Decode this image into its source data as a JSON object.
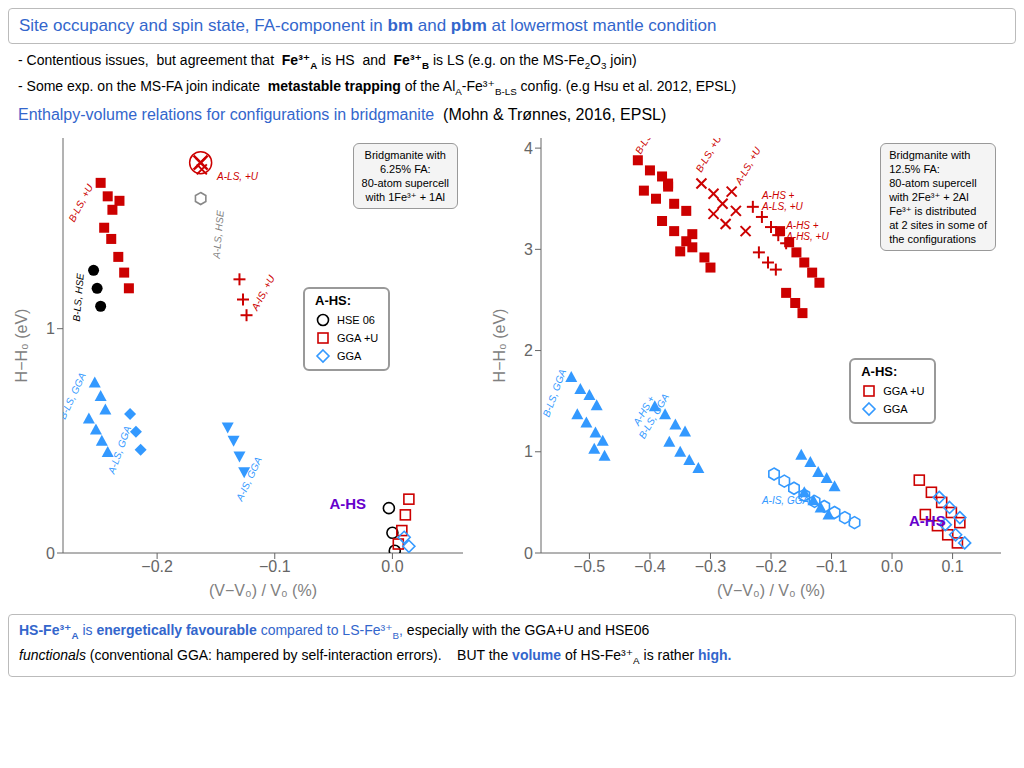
{
  "title": [
    {
      "text": "Site occupancy and spin state, FA-component in ",
      "color": "#3366cc"
    },
    {
      "text": "bm",
      "bold": true,
      "color": "#3366cc"
    },
    {
      "text": " and ",
      "color": "#3366cc"
    },
    {
      "text": "pbm",
      "bold": true,
      "color": "#3366cc"
    },
    {
      "text": " at lowermost mantle condition",
      "color": "#3366cc"
    }
  ],
  "subtitle": [
    [
      {
        "text": "- Contentious issues,  but agreement that  "
      },
      {
        "text": "Fe³⁺",
        "bold": true
      },
      {
        "text": "A",
        "bold": true,
        "sub": true
      },
      {
        "text": " is HS  and  "
      },
      {
        "text": "Fe³⁺",
        "bold": true
      },
      {
        "text": "B",
        "bold": true,
        "sub": true
      },
      {
        "text": " is LS (e.g. on the MS-Fe"
      },
      {
        "text": "2",
        "sub": true
      },
      {
        "text": "O"
      },
      {
        "text": "3",
        "sub": true
      },
      {
        "text": " join)"
      }
    ],
    [
      {
        "text": "- Some exp. on the MS-FA join indicate  "
      },
      {
        "text": "metastable trapping",
        "bold": true
      },
      {
        "text": " of the Al"
      },
      {
        "text": "A",
        "sub": true
      },
      {
        "text": "-Fe³⁺"
      },
      {
        "text": "B-LS",
        "sub": true
      },
      {
        "text": " config. (e.g Hsu et al. 2012, EPSL)"
      }
    ]
  ],
  "section": [
    {
      "text": "Enthalpy-volume relations for configurations in bridgmanite",
      "color": "#3366cc"
    },
    {
      "text": "  (Mohn & Trønnes, 2016, EPSL)"
    }
  ],
  "footer": [
    [
      {
        "text": "HS-Fe³⁺",
        "bold": true,
        "color": "#3366cc"
      },
      {
        "text": "A",
        "bold": true,
        "sub": true,
        "color": "#3366cc"
      },
      {
        "text": " is ",
        "color": "#3366cc"
      },
      {
        "text": "energetically favourable",
        "bold": true,
        "color": "#3366cc"
      },
      {
        "text": " compared to LS-Fe³⁺",
        "color": "#3366cc"
      },
      {
        "text": "B",
        "sub": true,
        "color": "#3366cc"
      },
      {
        "text": ",",
        "color": "#3366cc"
      },
      {
        "text": " especially with the GGA+U and HSE06"
      }
    ],
    [
      {
        "text": "functionals",
        "italic": true
      },
      {
        "text": " (conventional GGA: hampered by self-interaction errors).    BUT the "
      },
      {
        "text": "volume",
        "bold": true,
        "color": "#3366cc"
      },
      {
        "text": " of HS-Fe³⁺"
      },
      {
        "text": "A",
        "sub": true
      },
      {
        "text": " is rather "
      },
      {
        "text": "high.",
        "bold": true,
        "color": "#3366cc"
      }
    ]
  ],
  "chart_data": [
    {
      "type": "scatter",
      "x_label": "(V−V₀) / V₀ (%)",
      "y_label": "H−H₀ (eV)",
      "xlim": [
        -0.28,
        0.06
      ],
      "ylim": [
        0,
        1.85
      ],
      "xticks": [
        {
          "value": -0.2,
          "label": "−0.2"
        },
        {
          "value": -0.1,
          "label": "−0.1"
        },
        {
          "value": 0,
          "label": "0.0"
        }
      ],
      "yticks": [
        0,
        1
      ],
      "grid": false,
      "legend": "right",
      "legend_title": "A-HS:",
      "series": [
        {
          "marker": "square",
          "color": "#cc0000",
          "x": [
            -0.248,
            -0.242,
            -0.238,
            -0.232,
            -0.245,
            -0.239,
            -0.233,
            -0.228,
            -0.224
          ],
          "values": [
            1.65,
            1.59,
            1.53,
            1.57,
            1.45,
            1.4,
            1.32,
            1.25,
            1.18
          ]
        },
        {
          "marker": "circle",
          "color": "#000000",
          "x": [
            -0.254,
            -0.251,
            -0.248
          ],
          "values": [
            1.26,
            1.18,
            1.1
          ]
        },
        {
          "marker": "x",
          "color": "#cc0000",
          "x": [
            -0.163,
            -0.162
          ],
          "values": [
            1.74,
            1.71
          ]
        },
        {
          "marker": "circled-x",
          "color": "#cc0000",
          "x": [
            -0.163
          ],
          "values": [
            1.74
          ]
        },
        {
          "marker": "open-hexagon",
          "color": "#888888",
          "x": [
            -0.163
          ],
          "values": [
            1.58
          ]
        },
        {
          "marker": "plus",
          "color": "#cc0000",
          "x": [
            -0.13,
            -0.127,
            -0.124
          ],
          "values": [
            1.22,
            1.13,
            1.06
          ]
        },
        {
          "marker": "triangle-up",
          "color": "#3399ff",
          "x": [
            -0.253,
            -0.248,
            -0.244,
            -0.258,
            -0.252,
            -0.247,
            -0.242
          ],
          "values": [
            0.76,
            0.7,
            0.64,
            0.6,
            0.55,
            0.5,
            0.45
          ]
        },
        {
          "marker": "diamond",
          "color": "#3399ff",
          "x": [
            -0.223,
            -0.218,
            -0.214
          ],
          "values": [
            0.62,
            0.54,
            0.46
          ]
        },
        {
          "marker": "triangle-down",
          "color": "#3399ff",
          "x": [
            -0.14,
            -0.135,
            -0.13,
            -0.126
          ],
          "values": [
            0.56,
            0.5,
            0.43,
            0.36
          ]
        },
        {
          "name": "HSE 06",
          "marker": "open-circle",
          "color": "#000000",
          "x": [
            -0.003,
            0.0,
            0.002
          ],
          "values": [
            0.2,
            0.09,
            0.01
          ]
        },
        {
          "name": "GGA +U",
          "marker": "open-square",
          "color": "#cc0000",
          "x": [
            0.014,
            0.011,
            0.008,
            0.005
          ],
          "values": [
            0.24,
            0.17,
            0.1,
            0.04
          ]
        },
        {
          "name": "GGA",
          "marker": "open-diamond",
          "color": "#3399ff",
          "x": [
            0.01,
            0.014
          ],
          "values": [
            0.07,
            0.03
          ]
        }
      ],
      "annotations": [
        {
          "text": "B-LS, +U",
          "x": -0.265,
          "y": 1.56,
          "color": "#cc0000"
        },
        {
          "text": "B-LS, HSE",
          "x": -0.267,
          "y": 1.14,
          "color": "#000000"
        },
        {
          "text": "A-LS, +U",
          "x": -0.149,
          "y": 1.68,
          "color": "#cc0000"
        },
        {
          "text": "A-LS, HSE",
          "x": -0.148,
          "y": 1.42,
          "color": "#808080"
        },
        {
          "text": "A-IS, +U",
          "x": -0.11,
          "y": 1.16,
          "color": "#cc0000"
        },
        {
          "text": "B-LS, GGA",
          "x": -0.272,
          "y": 0.7,
          "color": "#3399ff"
        },
        {
          "text": "A-LS, GGA",
          "x": -0.232,
          "y": 0.46,
          "color": "#3399ff"
        },
        {
          "text": "A-IS, GGA",
          "x": -0.122,
          "y": 0.33,
          "color": "#3399ff"
        },
        {
          "text": "A-HS",
          "x": -0.038,
          "y": 0.22,
          "color": "#6600cc"
        },
        {
          "text": "Bridgmanite with\n6.25% FA:\n80-atom supercell\nwith 1Fe³⁺ + 1Al"
        }
      ]
    },
    {
      "type": "scatter",
      "x_label": "(V−V₀) / V₀ (%)",
      "y_label": "H−H₀ (eV)",
      "xlim": [
        -0.58,
        0.18
      ],
      "ylim": [
        0,
        4.1
      ],
      "xticks": [
        {
          "value": -0.5,
          "label": "−0.5"
        },
        {
          "value": -0.4,
          "label": "−0.4"
        },
        {
          "value": -0.3,
          "label": "−0.3"
        },
        {
          "value": -0.2,
          "label": "−0.2"
        },
        {
          "value": -0.1,
          "label": "−0.1"
        },
        {
          "value": 0,
          "label": "0.0"
        },
        0.1
      ],
      "yticks": [
        0,
        1,
        2,
        3,
        4
      ],
      "grid": false,
      "legend": "right",
      "legend_title": "A-HS:",
      "series": [
        {
          "marker": "square",
          "color": "#cc0000",
          "x": [
            -0.42,
            -0.4,
            -0.38,
            -0.37,
            -0.41,
            -0.39,
            -0.37,
            -0.36,
            -0.34,
            -0.38,
            -0.36,
            -0.34,
            -0.33,
            -0.35,
            -0.33,
            -0.31,
            -0.3
          ],
          "values": [
            3.88,
            3.78,
            3.72,
            3.65,
            3.58,
            3.5,
            3.62,
            3.45,
            3.38,
            3.28,
            3.18,
            3.08,
            3.15,
            2.98,
            3.02,
            2.92,
            2.82
          ]
        },
        {
          "marker": "x",
          "color": "#cc0000",
          "x": [
            -0.315,
            -0.295,
            -0.28,
            -0.265,
            -0.295,
            -0.275,
            -0.258,
            -0.242
          ],
          "values": [
            3.65,
            3.55,
            3.45,
            3.57,
            3.35,
            3.25,
            3.38,
            3.18
          ]
        },
        {
          "marker": "plus",
          "color": "#cc0000",
          "x": [
            -0.23,
            -0.215,
            -0.2,
            -0.188,
            -0.175,
            -0.22,
            -0.205,
            -0.192
          ],
          "values": [
            3.42,
            3.32,
            3.22,
            3.14,
            3.06,
            2.97,
            2.87,
            2.8
          ]
        },
        {
          "marker": "square",
          "color": "#cc0000",
          "x": [
            -0.185,
            -0.17,
            -0.158,
            -0.145,
            -0.132,
            -0.12,
            -0.175,
            -0.16,
            -0.148
          ],
          "values": [
            3.18,
            3.07,
            2.97,
            2.87,
            2.77,
            2.67,
            2.57,
            2.47,
            2.37
          ]
        },
        {
          "marker": "triangle-up",
          "color": "#3399ff",
          "x": [
            -0.53,
            -0.515,
            -0.5,
            -0.488,
            -0.52,
            -0.505,
            -0.49,
            -0.478,
            -0.492,
            -0.475
          ],
          "values": [
            1.74,
            1.62,
            1.56,
            1.46,
            1.37,
            1.29,
            1.19,
            1.11,
            1.03,
            0.96
          ]
        },
        {
          "marker": "triangle-up",
          "color": "#3399ff",
          "x": [
            -0.392,
            -0.375,
            -0.358,
            -0.342,
            -0.368,
            -0.35,
            -0.335,
            -0.32
          ],
          "values": [
            1.45,
            1.37,
            1.27,
            1.2,
            1.1,
            1.0,
            0.92,
            0.84
          ]
        },
        {
          "marker": "open-hexagon",
          "color": "#3399ff",
          "x": [
            -0.195,
            -0.178,
            -0.162,
            -0.145,
            -0.128,
            -0.112,
            -0.095,
            -0.078,
            -0.062
          ],
          "values": [
            0.78,
            0.71,
            0.64,
            0.57,
            0.51,
            0.46,
            0.4,
            0.35,
            0.3
          ]
        },
        {
          "marker": "triangle-up",
          "color": "#3399ff",
          "x": [
            -0.15,
            -0.135,
            -0.122,
            -0.108,
            -0.095,
            -0.145,
            -0.13,
            -0.118,
            -0.105
          ],
          "values": [
            0.97,
            0.9,
            0.8,
            0.74,
            0.66,
            0.6,
            0.52,
            0.45,
            0.38
          ]
        },
        {
          "name": "GGA +U",
          "marker": "open-square",
          "color": "#cc0000",
          "x": [
            0.045,
            0.065,
            0.082,
            0.098,
            0.112,
            0.055,
            0.075,
            0.092,
            0.108
          ],
          "values": [
            0.72,
            0.6,
            0.5,
            0.4,
            0.3,
            0.38,
            0.27,
            0.18,
            0.1
          ]
        },
        {
          "name": "GGA",
          "marker": "open-diamond",
          "color": "#3399ff",
          "x": [
            0.078,
            0.095,
            0.112,
            0.088,
            0.105,
            0.12
          ],
          "values": [
            0.55,
            0.45,
            0.35,
            0.28,
            0.18,
            0.1
          ]
        }
      ],
      "annotations": [
        {
          "text": "B-LS, +U",
          "x": -0.425,
          "y": 3.9,
          "color": "#cc0000"
        },
        {
          "text": "B-LS, +U",
          "x": -0.325,
          "y": 3.72,
          "color": "#cc0000"
        },
        {
          "text": "A-LS, +U",
          "x": -0.26,
          "y": 3.6,
          "color": "#cc0000"
        },
        {
          "text": "A-HS +\nA-LS, +U",
          "x": -0.215,
          "y": 3.48,
          "color": "#cc0000"
        },
        {
          "text": "A-HS +\nA-HS, +U",
          "x": -0.175,
          "y": 3.18,
          "color": "#cc0000"
        },
        {
          "text": "B-LS, GGA",
          "x": -0.558,
          "y": 1.58,
          "color": "#3399ff"
        },
        {
          "text": "A-HS +\nB-LS, GGA",
          "x": -0.402,
          "y": 1.38,
          "color": "#3399ff"
        },
        {
          "text": "A-IS, GGA",
          "x": -0.215,
          "y": 0.52,
          "color": "#3399ff"
        },
        {
          "text": "A-HS",
          "x": 0.028,
          "y": 0.32,
          "color": "#6600cc"
        },
        {
          "text": "Bridgmanite with\n12.5% FA:\n80-atom supercell\nwith 2Fe³⁺ + 2Al\nFe³⁺ is distributed\nat 2 sites in some of\nthe configurations"
        }
      ]
    }
  ]
}
